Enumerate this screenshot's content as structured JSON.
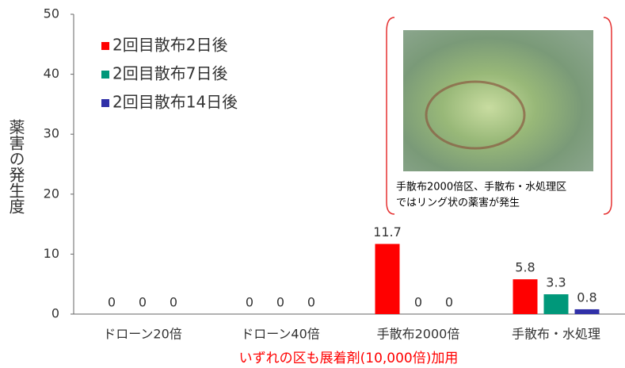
{
  "chart_data": {
    "type": "bar",
    "y_label": "薬害の発生度",
    "x_label": "いずれの区も展着剤(10,000倍)加用",
    "categories": [
      "ドローン20倍",
      "ドローン40倍",
      "手散布2000倍",
      "手散布・水処理"
    ],
    "series": [
      {
        "name": "2回目散布2日後",
        "color": "#ff0000",
        "values": [
          0,
          0,
          11.7,
          5.8
        ]
      },
      {
        "name": "2回目散布7日後",
        "color": "#00987a",
        "values": [
          0,
          0,
          0,
          3.3
        ]
      },
      {
        "name": "2回目散布14日後",
        "color": "#3030a8",
        "values": [
          0,
          0,
          0,
          0.8
        ]
      }
    ],
    "ylim": [
      0,
      50
    ],
    "yticks": [
      0,
      10,
      20,
      30,
      40,
      50
    ],
    "grid": false,
    "legend": "upper-left",
    "annotation": [
      "手散布2000倍区、手散布・水処理区",
      "ではリング状の薬害が発生"
    ]
  }
}
